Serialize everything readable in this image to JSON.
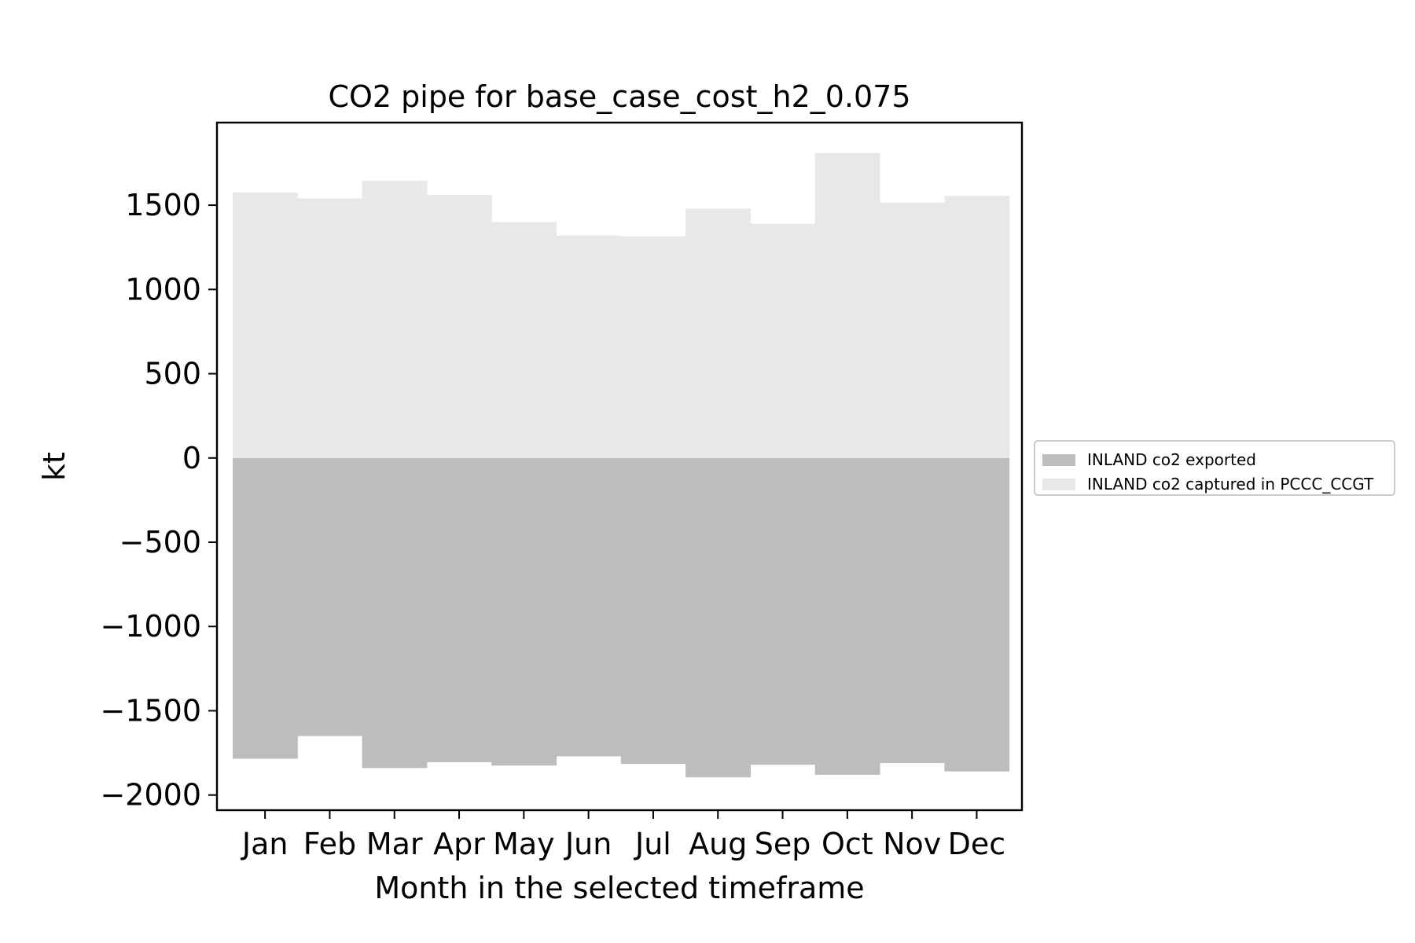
{
  "chart_data": {
    "type": "bar",
    "title": "CO2 pipe for base_case_cost_h2_0.075",
    "xlabel": "Month in the selected timeframe",
    "ylabel": "kt",
    "categories": [
      "Jan",
      "Feb",
      "Mar",
      "Apr",
      "May",
      "Jun",
      "Jul",
      "Aug",
      "Sep",
      "Oct",
      "Nov",
      "Dec"
    ],
    "series": [
      {
        "name": "INLAND co2 exported",
        "color": "#bdbdbd",
        "values": [
          -1785,
          -1650,
          -1840,
          -1805,
          -1825,
          -1770,
          -1815,
          -1895,
          -1820,
          -1880,
          -1810,
          -1860
        ]
      },
      {
        "name": "INLAND co2 captured in PCCC_CCGT",
        "color": "#e8e8e8",
        "values": [
          1575,
          1540,
          1645,
          1560,
          1400,
          1320,
          1315,
          1480,
          1390,
          1810,
          1515,
          1555
        ]
      }
    ],
    "yticks": [
      -2000,
      -1500,
      -1000,
      -500,
      0,
      500,
      1000,
      1500
    ],
    "ytick_labels": [
      "−2000",
      "−1500",
      "−1000",
      "−500",
      "0",
      "500",
      "1000",
      "1500"
    ],
    "ylim": [
      -2090,
      1990
    ],
    "grid": false,
    "legend_position": "center-right, outside plot"
  }
}
